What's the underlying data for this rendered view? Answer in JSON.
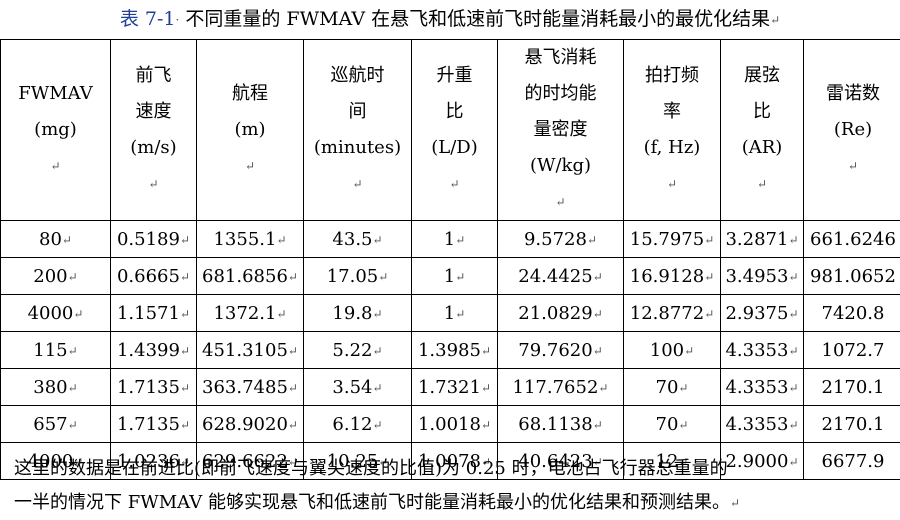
{
  "caption": {
    "label": "表 7-1",
    "text": "不同重量的 FWMAV 在悬飞和低速前飞时能量消耗最小的最优化结果"
  },
  "table": {
    "headers": [
      {
        "lines": [
          "FWMAV",
          "(mg)"
        ]
      },
      {
        "lines": [
          "前飞",
          "速度",
          "(m/s)"
        ]
      },
      {
        "lines": [
          "航程",
          "(m)"
        ]
      },
      {
        "lines": [
          "巡航时",
          "间",
          "(minutes)"
        ]
      },
      {
        "lines": [
          "升重",
          "比",
          "(L/D)"
        ]
      },
      {
        "lines": [
          "悬飞消耗",
          "的时均能",
          "量密度",
          "(W/kg)"
        ]
      },
      {
        "lines": [
          "拍打频",
          "率",
          "(f, Hz)"
        ]
      },
      {
        "lines": [
          "展弦",
          "比",
          "(AR)"
        ]
      },
      {
        "lines": [
          "雷诺数",
          "(Re)"
        ]
      }
    ],
    "rows": [
      [
        "80",
        "0.5189",
        "1355.1",
        "43.5",
        "1",
        "9.5728",
        "15.7975",
        "3.2871",
        "661.6246"
      ],
      [
        "200",
        "0.6665",
        "681.6856",
        "17.05",
        "1",
        "24.4425",
        "16.9128",
        "3.4953",
        "981.0652"
      ],
      [
        "4000",
        "1.1571",
        "1372.1",
        "19.8",
        "1",
        "21.0829",
        "12.8772",
        "2.9375",
        "7420.8"
      ],
      [
        "115",
        "1.4399",
        "451.3105",
        "5.22",
        "1.3985",
        "79.7620",
        "100",
        "4.3353",
        "1072.7"
      ],
      [
        "380",
        "1.7135",
        "363.7485",
        "3.54",
        "1.7321",
        "117.7652",
        "70",
        "4.3353",
        "2170.1"
      ],
      [
        "657",
        "1.7135",
        "628.9020",
        "6.12",
        "1.0018",
        "68.1138",
        "70",
        "4.3353",
        "2170.1"
      ],
      [
        "4000",
        "1.0236",
        "629.6622",
        "10.25",
        "1.0078",
        "40.6423",
        "12",
        "2.9000",
        "6677.9"
      ]
    ]
  },
  "note": {
    "line1": "这里的数据是在前进比(即前飞速度与翼尖速度的比值)为 0.25 时，电池占飞行器总重量的",
    "line2": "一半的情况下 FWMAV 能够实现悬飞和低速前飞时能量消耗最小的优化结果和预测结果。"
  },
  "colors": {
    "caption_label": "#1f3f99",
    "text": "#000000",
    "border": "#000000",
    "paragraph_mark": "#555555"
  },
  "glyphs": {
    "cell_mark": "↵",
    "caption_mark": "↵",
    "note_mark": "↵"
  }
}
